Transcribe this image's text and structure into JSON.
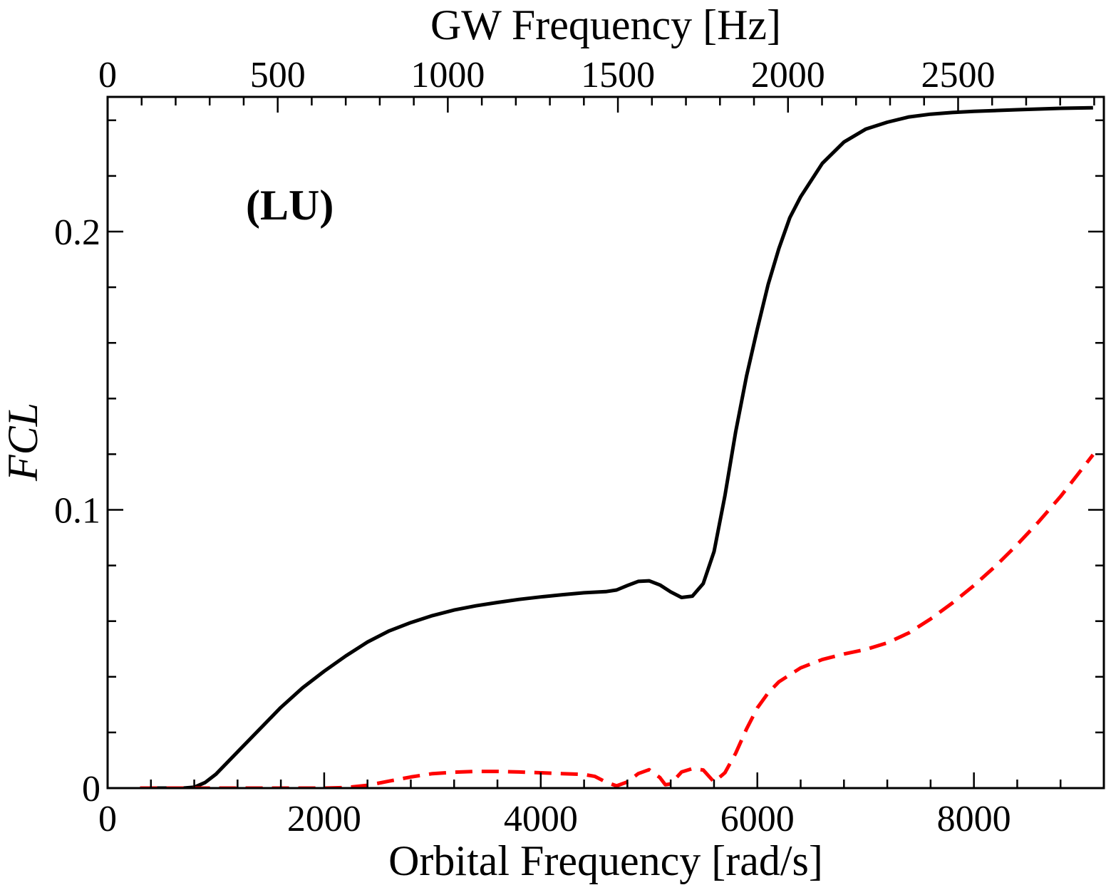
{
  "chart_data": {
    "type": "line",
    "xlabel": "Orbital Frequency [rad/s]",
    "x2label": "GW Frequency [Hz]",
    "ylabel": "FCL",
    "annotation": "(LU)",
    "xlim": [
      0,
      9200
    ],
    "x2lim": [
      0,
      2928.45
    ],
    "ylim": [
      0,
      0.2484
    ],
    "xticks": [
      0,
      2000,
      4000,
      6000,
      8000
    ],
    "x2ticks": [
      0,
      500,
      1000,
      1500,
      2000,
      2500
    ],
    "yticks": [
      0,
      0.1,
      0.2
    ],
    "ytick_labels": [
      "0",
      "0.1",
      "0.2"
    ],
    "grid": false,
    "series": [
      {
        "style": "solid",
        "color": "#000000",
        "x": [
          300,
          700,
          800,
          900,
          1000,
          1200,
          1400,
          1600,
          1800,
          2000,
          2200,
          2400,
          2600,
          2800,
          3000,
          3200,
          3400,
          3600,
          3800,
          4000,
          4200,
          4400,
          4600,
          4700,
          4800,
          4900,
          5000,
          5100,
          5200,
          5300,
          5400,
          5500,
          5600,
          5700,
          5800,
          5900,
          6000,
          6100,
          6200,
          6300,
          6400,
          6600,
          6800,
          7000,
          7200,
          7400,
          7600,
          7800,
          8000,
          8400,
          8800,
          9100
        ],
        "y": [
          0,
          0,
          0.0003,
          0.002,
          0.005,
          0.013,
          0.021,
          0.029,
          0.036,
          0.042,
          0.0475,
          0.0525,
          0.0565,
          0.0595,
          0.062,
          0.064,
          0.0655,
          0.0667,
          0.0678,
          0.0687,
          0.0695,
          0.0702,
          0.0706,
          0.0712,
          0.0728,
          0.0743,
          0.0745,
          0.073,
          0.0705,
          0.0685,
          0.069,
          0.0735,
          0.085,
          0.105,
          0.128,
          0.148,
          0.165,
          0.181,
          0.194,
          0.205,
          0.2125,
          0.2245,
          0.2322,
          0.2368,
          0.2393,
          0.2412,
          0.2422,
          0.2428,
          0.2432,
          0.2438,
          0.2443,
          0.2445
        ]
      },
      {
        "style": "dashed",
        "color": "#ff0000",
        "x": [
          300,
          2000,
          2200,
          2400,
          2600,
          2800,
          3000,
          3200,
          3400,
          3600,
          3800,
          4000,
          4200,
          4400,
          4500,
          4600,
          4700,
          4800,
          4900,
          5000,
          5100,
          5150,
          5200,
          5300,
          5400,
          5500,
          5600,
          5700,
          5800,
          5900,
          6000,
          6100,
          6200,
          6400,
          6600,
          6800,
          7000,
          7200,
          7400,
          7600,
          7800,
          8000,
          8200,
          8400,
          8600,
          8800,
          9100
        ],
        "y": [
          0,
          0,
          0.0002,
          0.001,
          0.0025,
          0.004,
          0.0052,
          0.0057,
          0.006,
          0.006,
          0.0058,
          0.0055,
          0.0052,
          0.0049,
          0.0042,
          0.0022,
          0.0008,
          0.0022,
          0.0052,
          0.0066,
          0.0038,
          0.0012,
          0.0015,
          0.0058,
          0.007,
          0.0065,
          0.0022,
          0.0055,
          0.0125,
          0.0212,
          0.0288,
          0.0342,
          0.0382,
          0.0432,
          0.0462,
          0.0482,
          0.0498,
          0.0522,
          0.0558,
          0.0608,
          0.0665,
          0.0728,
          0.0798,
          0.0875,
          0.0958,
          0.1048,
          0.1198
        ]
      }
    ]
  }
}
